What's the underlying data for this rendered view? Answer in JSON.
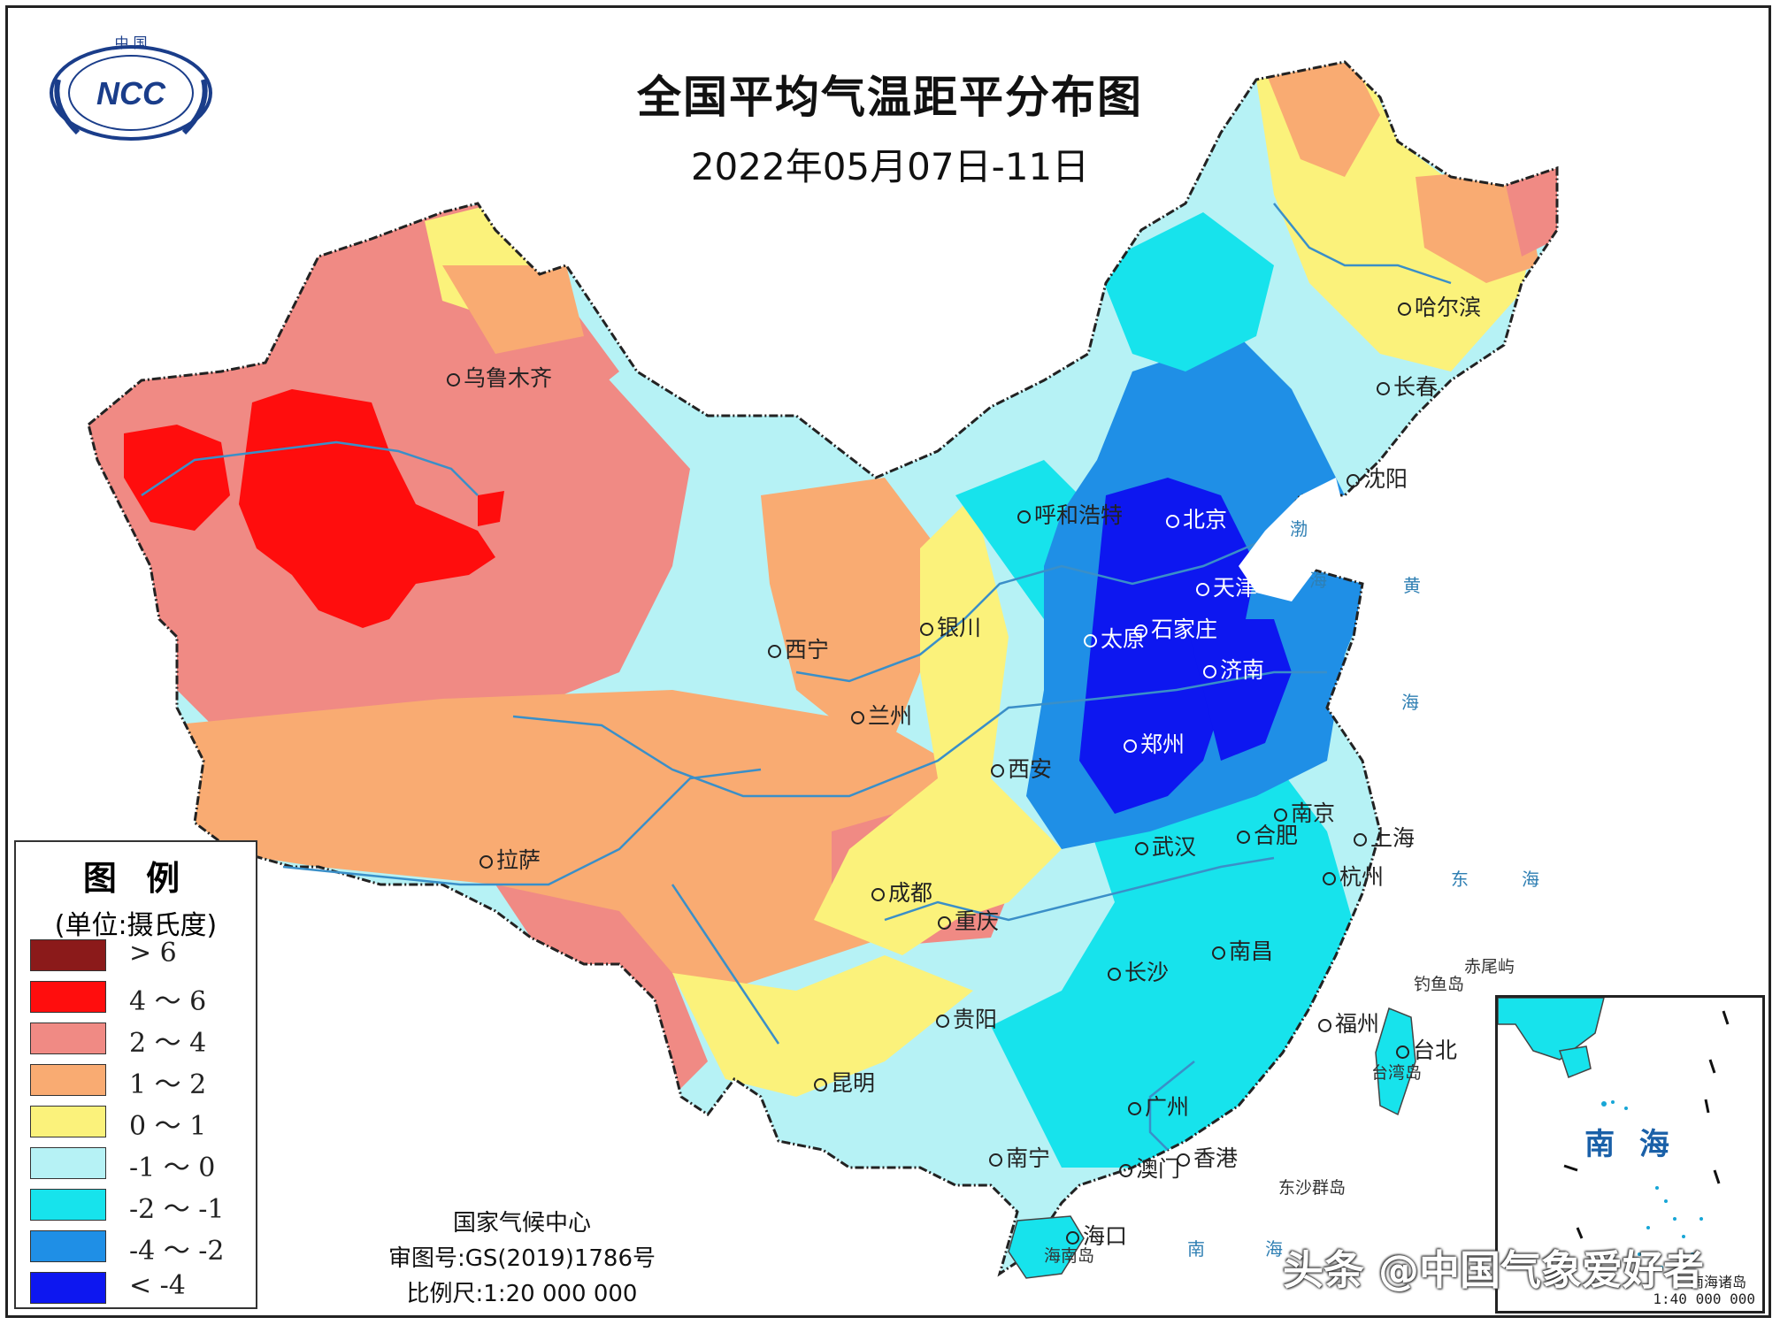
{
  "title": "全国平均气温距平分布图",
  "date_range": "2022年05月07日-11日",
  "logo": {
    "top_text": "中 国",
    "mark": "NCC"
  },
  "legend": {
    "title": "图  例",
    "unit": "(单位:摄氏度)",
    "items": [
      {
        "label": "> 6",
        "color": "#8b1a1a"
      },
      {
        "label": "4 ～ 6",
        "color": "#ff0d0d"
      },
      {
        "label": "2 ～ 4",
        "color": "#f08a84"
      },
      {
        "label": "1 ～ 2",
        "color": "#f9ab72"
      },
      {
        "label": "0 ～ 1",
        "color": "#fbf27b"
      },
      {
        "label": "-1 ～ 0",
        "color": "#b6f2f5"
      },
      {
        "label": "-2 ～ -1",
        "color": "#17e3ec"
      },
      {
        "label": "-4 ～ -2",
        "color": "#1f8fe6"
      },
      {
        "label": "< -4",
        "color": "#0d17f0"
      }
    ]
  },
  "credits": {
    "agency": "国家气候中心",
    "approval": "审图号:GS(2019)1786号",
    "scale": "比例尺:1:20 000 000"
  },
  "cities": [
    {
      "name": "乌鲁木齐",
      "white": false
    },
    {
      "name": "呼和浩特",
      "white": false
    },
    {
      "name": "北京",
      "white": true
    },
    {
      "name": "天津",
      "white": true
    },
    {
      "name": "石家庄",
      "white": true
    },
    {
      "name": "太原",
      "white": true
    },
    {
      "name": "济南",
      "white": true
    },
    {
      "name": "郑州",
      "white": true
    },
    {
      "name": "银川",
      "white": false
    },
    {
      "name": "西宁",
      "white": false
    },
    {
      "name": "兰州",
      "white": false
    },
    {
      "name": "西安",
      "white": false
    },
    {
      "name": "拉萨",
      "white": false
    },
    {
      "name": "成都",
      "white": false
    },
    {
      "name": "重庆",
      "white": false
    },
    {
      "name": "贵阳",
      "white": false
    },
    {
      "name": "昆明",
      "white": false
    },
    {
      "name": "南宁",
      "white": false
    },
    {
      "name": "广州",
      "white": false
    },
    {
      "name": "澳门",
      "white": false
    },
    {
      "name": "香港",
      "white": false
    },
    {
      "name": "海口",
      "white": false
    },
    {
      "name": "长沙",
      "white": false
    },
    {
      "name": "武汉",
      "white": false
    },
    {
      "name": "南昌",
      "white": false
    },
    {
      "name": "合肥",
      "white": false
    },
    {
      "name": "南京",
      "white": false
    },
    {
      "name": "上海",
      "white": false
    },
    {
      "name": "杭州",
      "white": false
    },
    {
      "name": "福州",
      "white": false
    },
    {
      "name": "台北",
      "white": false
    },
    {
      "name": "沈阳",
      "white": false
    },
    {
      "name": "长春",
      "white": false
    },
    {
      "name": "哈尔滨",
      "white": false
    }
  ],
  "places": {
    "taiwan_island": "台湾岛",
    "diaoyu": "钓鱼岛",
    "chiwei": "赤尾屿",
    "dongsha": "东沙群岛",
    "hainan_island": "海南岛"
  },
  "seas": {
    "bohai": "渤",
    "bohai2": "海",
    "yellow": "黄",
    "yellow2": "海",
    "east": "东",
    "east2": "海",
    "south": "南",
    "south2": "海"
  },
  "inset": {
    "label": "南 海",
    "subtitle": "南海诸岛",
    "scale": "1:40 000 000"
  },
  "watermark": "头条 @中国气象爱好者"
}
